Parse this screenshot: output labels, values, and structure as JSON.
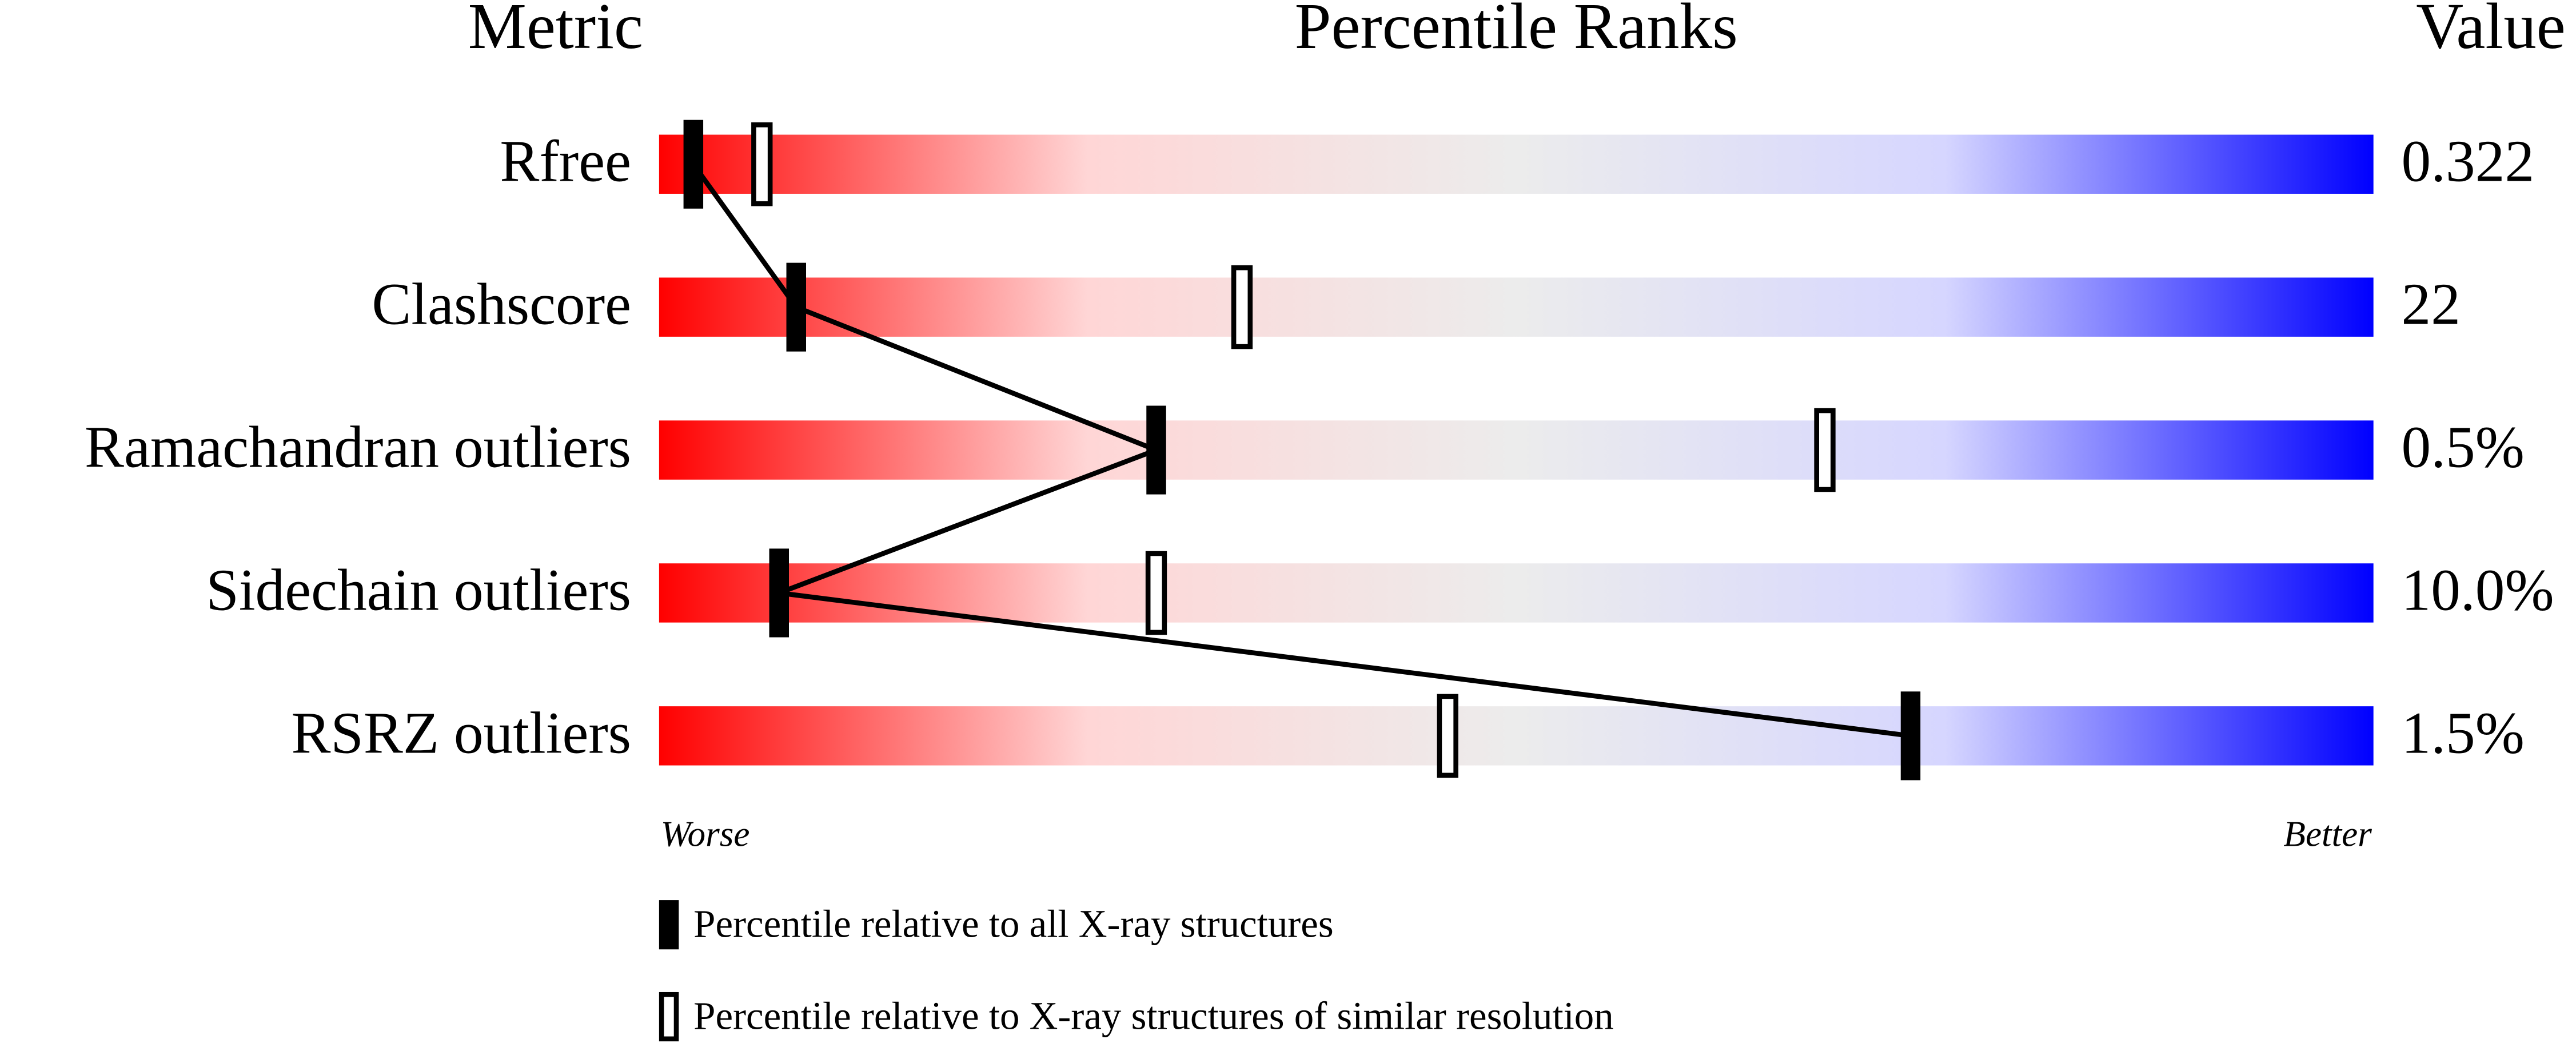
{
  "chart_data": {
    "type": "percentile",
    "headers": [
      "Metric",
      "Percentile Ranks",
      "Value"
    ],
    "categories": [
      "Rfree",
      "Clashscore",
      "Ramachandran outliers",
      "Sidechain outliers",
      "RSRZ outliers"
    ],
    "metric_values": [
      "0.322",
      "22",
      "0.5%",
      "10.0%",
      "1.5%"
    ],
    "xlim": [
      0,
      100
    ],
    "x_end_labels": [
      "Worse",
      "Better"
    ],
    "series": [
      {
        "name": "Percentile relative to all X-ray structures",
        "color": "#000000",
        "values": [
          2,
          8,
          29,
          7,
          73
        ]
      },
      {
        "name": "Percentile relative to X-ray structures of similar resolution",
        "color": "#ffffff",
        "values": [
          6,
          34,
          68,
          29,
          46
        ]
      }
    ],
    "gradient": [
      "#ff0000",
      "#ffd6d6",
      "#ececec",
      "#d6d6ff",
      "#0000ff"
    ]
  }
}
